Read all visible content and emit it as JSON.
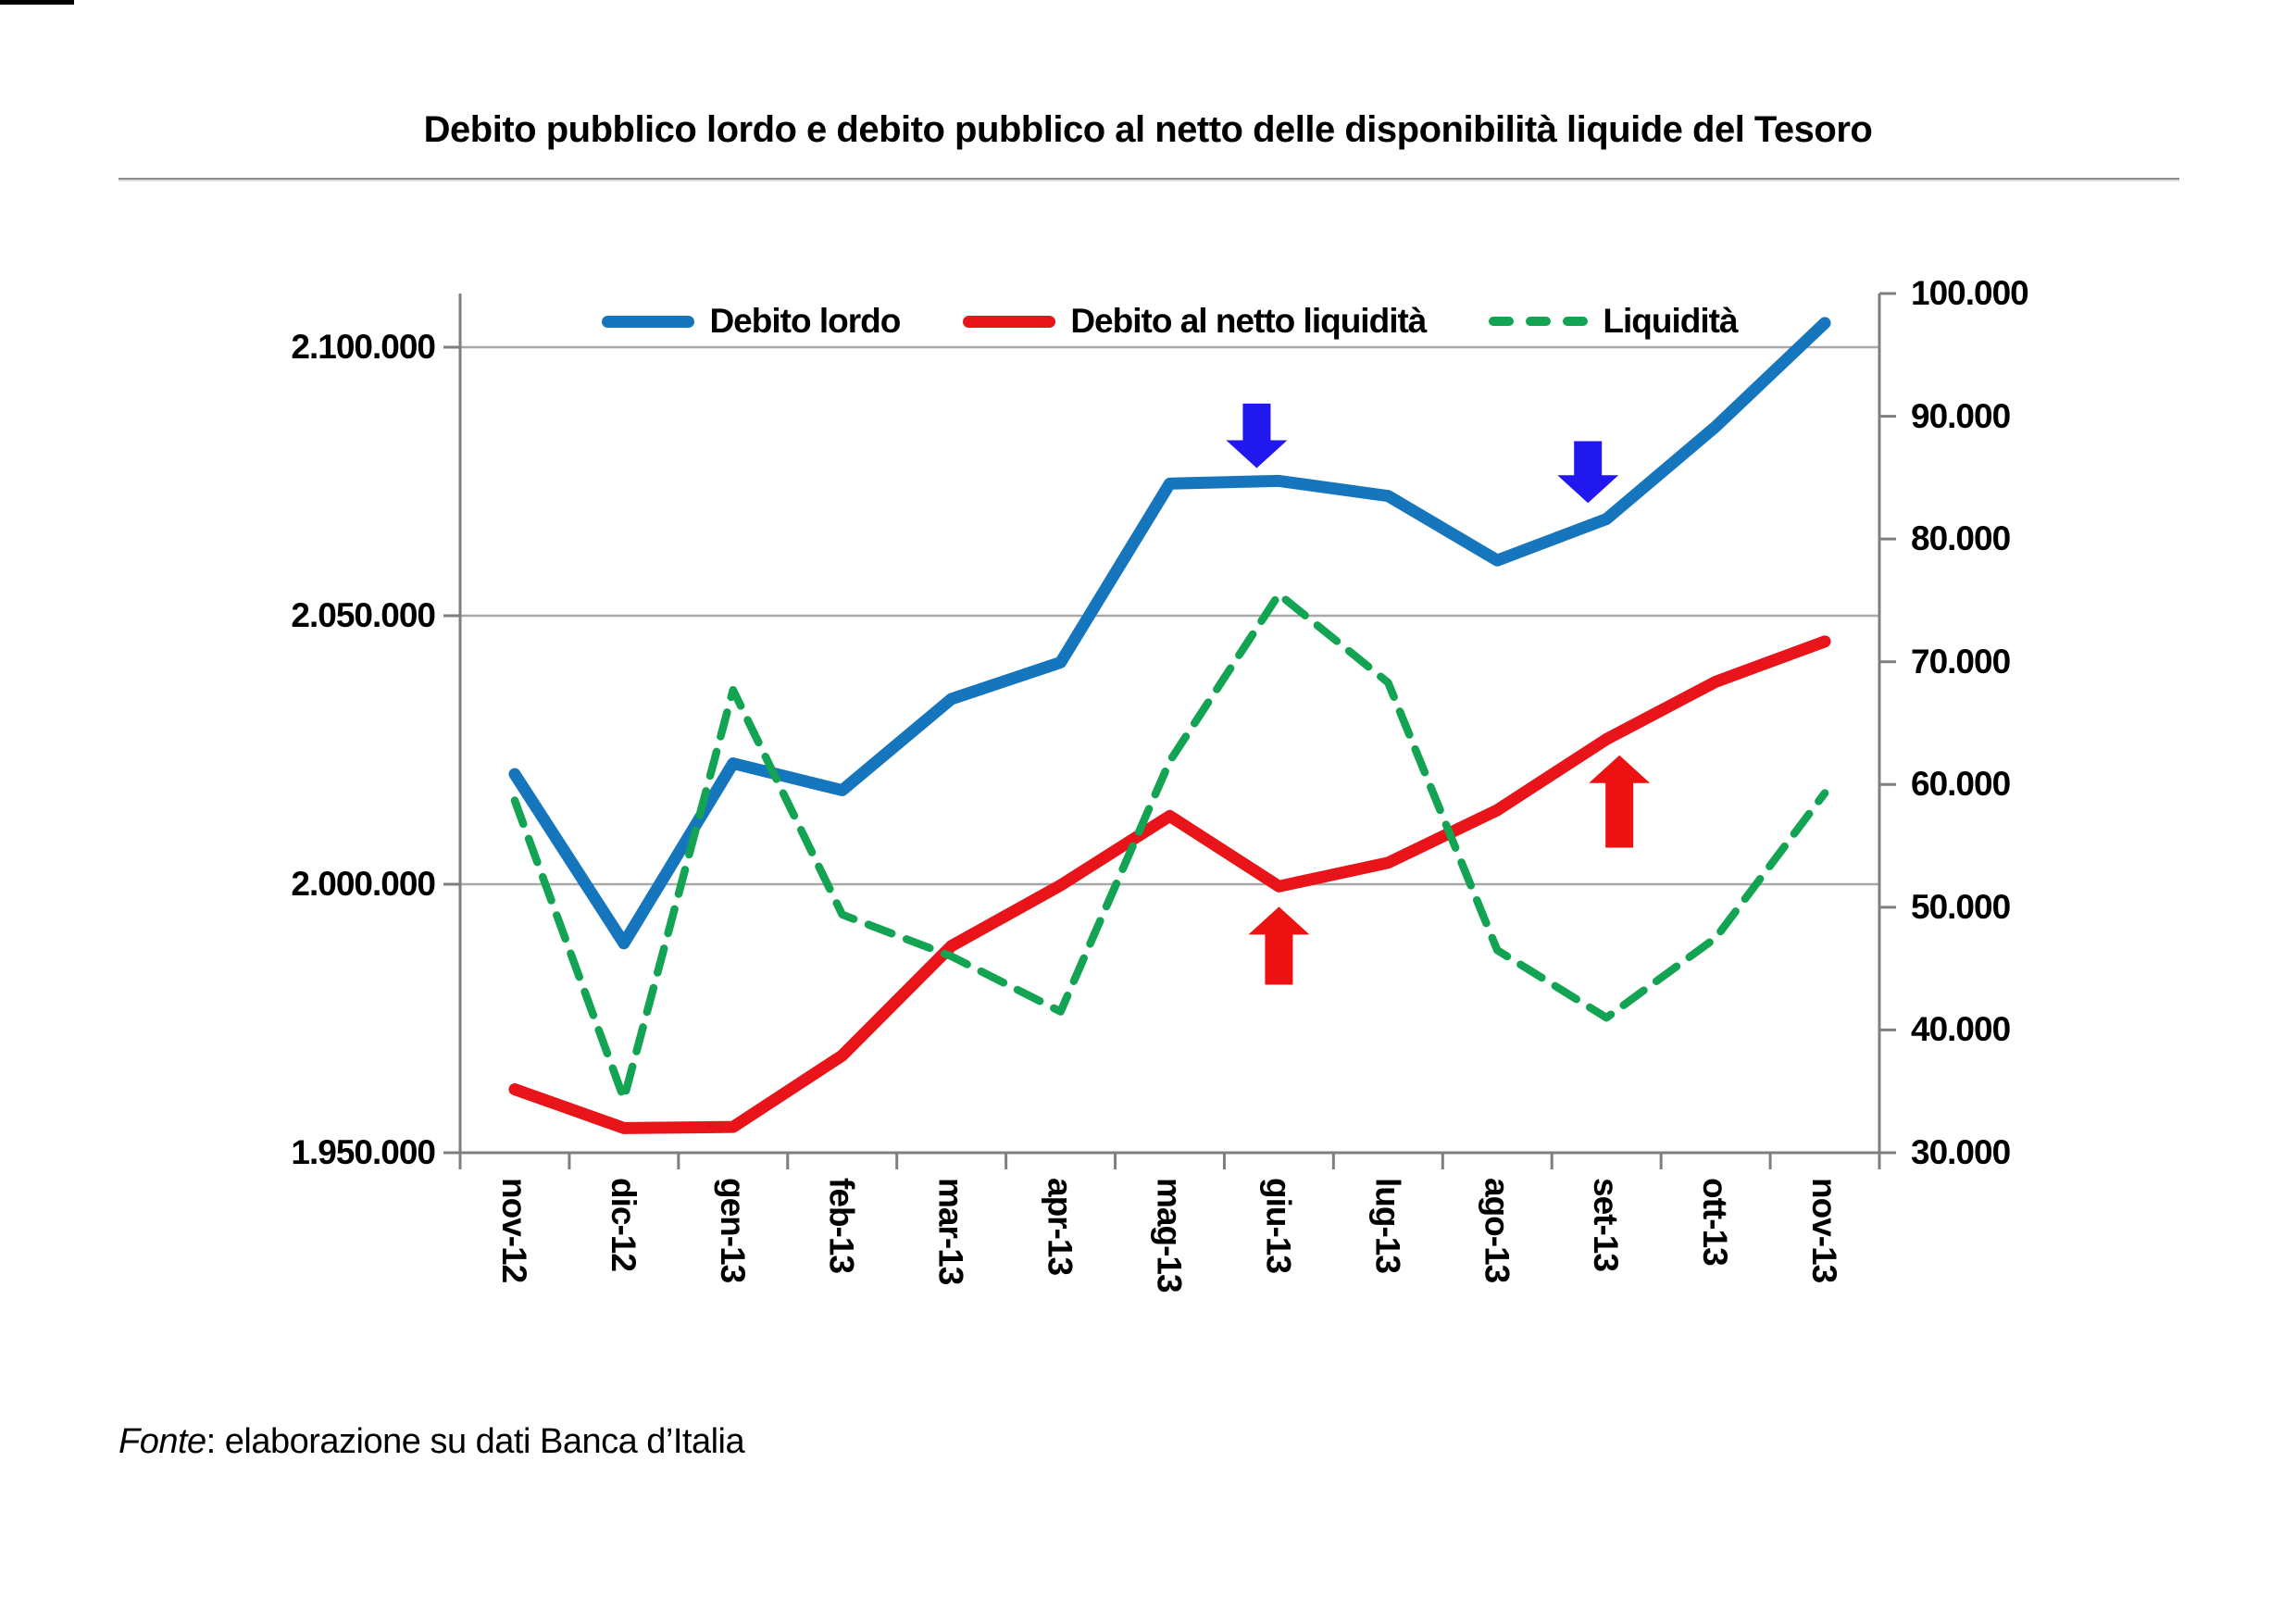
{
  "title": {
    "text": "Debito pubblico lordo e debito pubblico al netto delle disponibilità liquide del Tesoro"
  },
  "footer": {
    "source_label": "Fonte",
    "source_text": ": elaborazione su dati Banca d’Italia"
  },
  "colors": {
    "blue_line": "#1575bd",
    "red_line": "#e81419",
    "green_line": "#12a452",
    "arrow_blue": "#2118ef",
    "arrow_red": "#ee1111",
    "gridline": "#a8a8a8",
    "axis_line": "#7f7f7f",
    "text": "#000000"
  },
  "chart_data": {
    "type": "line",
    "title": "Debito pubblico lordo e debito pubblico al netto delle disponibilità liquide del Tesoro",
    "grid": "horizontal",
    "legend_position": "top",
    "categories": [
      "nov-12",
      "dic-12",
      "gen-13",
      "feb-13",
      "mar-13",
      "apr-13",
      "mag-13",
      "giu-13",
      "lug-13",
      "ago-13",
      "set-13",
      "ott-13",
      "nov-13"
    ],
    "series": [
      {
        "name": "Debito lordo",
        "axis": "left",
        "style": "solid",
        "color": "#1575bd",
        "values": [
          2020500,
          1989000,
          2022500,
          2017500,
          2034500,
          2041300,
          2074600,
          2075100,
          2072300,
          2060300,
          2068000,
          2085200,
          2104500
        ]
      },
      {
        "name": "Debito al netto liquidità",
        "axis": "left",
        "style": "solid",
        "color": "#e81419",
        "values": [
          1961800,
          1954600,
          1954800,
          1968100,
          1988500,
          1999800,
          2012700,
          1999600,
          2004000,
          2013800,
          2027000,
          2037700,
          2045200
        ]
      },
      {
        "name": "Liquidità",
        "axis": "right",
        "style": "dashed",
        "color": "#12a452",
        "values": [
          58700,
          34400,
          67700,
          49400,
          46000,
          41500,
          61900,
          75500,
          68300,
          46500,
          41000,
          47500,
          59300
        ]
      }
    ],
    "left_axis": {
      "range": [
        1950000,
        2110000
      ],
      "tick_values": [
        1950000,
        2000000,
        2050000,
        2100000
      ],
      "tick_labels": [
        "1.950.000",
        "2.000.000",
        "2.050.000",
        "2.100.000"
      ]
    },
    "right_axis": {
      "range": [
        30000,
        100000
      ],
      "tick_values": [
        30000,
        40000,
        50000,
        60000,
        70000,
        80000,
        90000,
        100000
      ],
      "tick_labels": [
        "30.000",
        "40.000",
        "50.000",
        "60.000",
        "70.000",
        "80.000",
        "90.000",
        "100.000"
      ]
    },
    "annotations": {
      "arrows": [
        {
          "month": "giu-13",
          "direction": "down",
          "axis": "left",
          "tip_value": 2077500,
          "tail_value": 2089500,
          "dx": -24,
          "color": "#2118ef"
        },
        {
          "month": "set-13",
          "direction": "down",
          "axis": "left",
          "tip_value": 2071000,
          "tail_value": 2082500,
          "dx": -20,
          "color": "#2118ef"
        },
        {
          "month": "giu-13",
          "direction": "up",
          "axis": "left",
          "tip_value": 1995800,
          "tail_value": 1981300,
          "dx": 0,
          "color": "#ee1111"
        },
        {
          "month": "set-13",
          "direction": "up",
          "axis": "left",
          "tip_value": 2024000,
          "tail_value": 2006800,
          "dx": 14,
          "color": "#ee1111"
        }
      ]
    }
  }
}
